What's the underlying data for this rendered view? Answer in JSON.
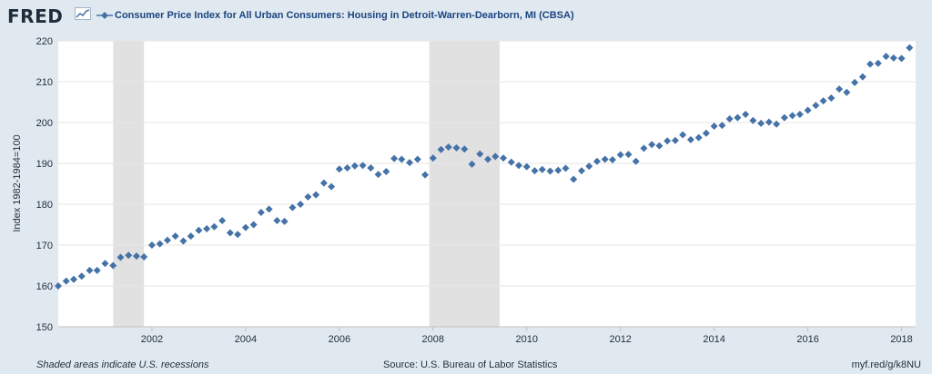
{
  "brand": {
    "logo_text": "FRED",
    "accent": "#4572a7"
  },
  "chart_data": {
    "type": "scatter",
    "title": "Consumer Price Index for All Urban Consumers: Housing in Detroit-Warren-Dearborn, MI (CBSA)",
    "ylabel": "Index 1982-1984=100",
    "xlabel": "",
    "ylim": [
      150,
      220
    ],
    "xlim": [
      2000.0,
      2018.3
    ],
    "yticks": [
      150,
      160,
      170,
      180,
      190,
      200,
      210,
      220
    ],
    "xticks": [
      2002,
      2004,
      2006,
      2008,
      2010,
      2012,
      2014,
      2016,
      2018
    ],
    "xtick_labels": [
      "2002",
      "2004",
      "2006",
      "2008",
      "2010",
      "2012",
      "2014",
      "2016",
      "2018"
    ],
    "grid": true,
    "marker_color": "#4572a7",
    "recessions": [
      [
        2001.17,
        2001.83
      ],
      [
        2007.92,
        2009.42
      ]
    ],
    "series": [
      {
        "name": "Consumer Price Index for All Urban Consumers: Housing in Detroit-Warren-Dearborn, MI (CBSA)",
        "x": [
          2000.0,
          2000.17,
          2000.33,
          2000.5,
          2000.67,
          2000.83,
          2001.0,
          2001.17,
          2001.33,
          2001.5,
          2001.67,
          2001.83,
          2002.0,
          2002.17,
          2002.33,
          2002.5,
          2002.67,
          2002.83,
          2003.0,
          2003.17,
          2003.33,
          2003.5,
          2003.67,
          2003.83,
          2004.0,
          2004.17,
          2004.33,
          2004.5,
          2004.67,
          2004.83,
          2005.0,
          2005.17,
          2005.33,
          2005.5,
          2005.67,
          2005.83,
          2006.0,
          2006.17,
          2006.33,
          2006.5,
          2006.67,
          2006.83,
          2007.0,
          2007.17,
          2007.33,
          2007.5,
          2007.67,
          2007.83,
          2008.0,
          2008.17,
          2008.33,
          2008.5,
          2008.67,
          2008.83,
          2009.0,
          2009.17,
          2009.33,
          2009.5,
          2009.67,
          2009.83,
          2010.0,
          2010.17,
          2010.33,
          2010.5,
          2010.67,
          2010.83,
          2011.0,
          2011.17,
          2011.33,
          2011.5,
          2011.67,
          2011.83,
          2012.0,
          2012.17,
          2012.33,
          2012.5,
          2012.67,
          2012.83,
          2013.0,
          2013.17,
          2013.33,
          2013.5,
          2013.67,
          2013.83,
          2014.0,
          2014.17,
          2014.33,
          2014.5,
          2014.67,
          2014.83,
          2015.0,
          2015.17,
          2015.33,
          2015.5,
          2015.67,
          2015.83,
          2016.0,
          2016.17,
          2016.33,
          2016.5,
          2016.67,
          2016.83,
          2017.0,
          2017.17,
          2017.33,
          2017.5,
          2017.67,
          2017.83,
          2018.0,
          2018.17
        ],
        "y": [
          160.0,
          161.2,
          161.6,
          162.4,
          163.8,
          163.8,
          165.5,
          165.0,
          167.0,
          167.5,
          167.3,
          167.1,
          170.0,
          170.3,
          171.2,
          172.2,
          171.0,
          172.2,
          173.6,
          174.0,
          174.5,
          176.0,
          173.0,
          172.6,
          174.3,
          175.0,
          178.0,
          178.8,
          176.0,
          175.8,
          179.2,
          180.0,
          181.8,
          182.3,
          185.2,
          184.3,
          188.6,
          188.9,
          189.4,
          189.5,
          188.9,
          187.3,
          188.0,
          191.2,
          191.0,
          190.2,
          191.0,
          187.2,
          191.3,
          193.4,
          194.0,
          193.8,
          193.5,
          189.8,
          192.3,
          191.0,
          191.7,
          191.3,
          190.3,
          189.5,
          189.2,
          188.2,
          188.5,
          188.1,
          188.3,
          188.8,
          186.1,
          188.2,
          189.3,
          190.5,
          191.0,
          190.9,
          192.1,
          192.2,
          190.5,
          193.7,
          194.6,
          194.3,
          195.5,
          195.6,
          197.0,
          195.8,
          196.3,
          197.4,
          199.1,
          199.3,
          200.9,
          201.2,
          202.0,
          200.5,
          199.8,
          200.1,
          199.6,
          201.2,
          201.7,
          202.0,
          203.0,
          204.2,
          205.3,
          206.0,
          208.2,
          207.4,
          209.8,
          211.2,
          214.3,
          214.5,
          216.2,
          215.8,
          215.7,
          218.3
        ]
      }
    ]
  },
  "footer": {
    "note": "Shaded areas indicate U.S. recessions",
    "source": "Source: U.S. Bureau of Labor Statistics",
    "link": "myf.red/g/k8NU"
  }
}
